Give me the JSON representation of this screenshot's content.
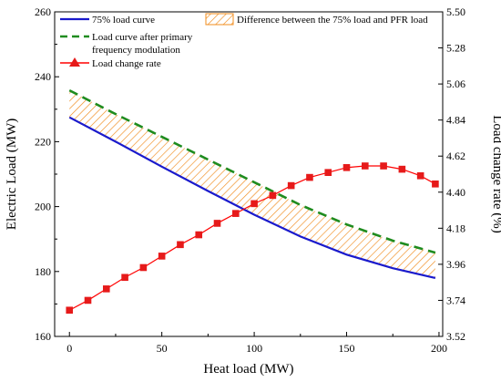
{
  "chart_data": {
    "type": "line",
    "title": "",
    "xlabel": "Heat load (MW)",
    "ylabel_left": "Electric Load (MW)",
    "ylabel_right": "Load change rate (%)",
    "xlim": [
      -8,
      202
    ],
    "ylim_left": [
      160,
      260
    ],
    "ylim_right": [
      3.52,
      5.5
    ],
    "x_ticks": [
      0,
      50,
      100,
      150,
      200
    ],
    "y_ticks_left": [
      160,
      180,
      200,
      220,
      240,
      260
    ],
    "y_ticks_right": [
      "3.52",
      "3.74",
      "3.96",
      "4.18",
      "4.40",
      "4.62",
      "4.84",
      "5.06",
      "5.28",
      "5.50"
    ],
    "grid": false,
    "legend_placement": "top",
    "series": [
      {
        "name": "75% load curve",
        "axis": "left",
        "style": "solid",
        "color": "#1a1acc",
        "x": [
          0,
          25,
          50,
          75,
          100,
          125,
          150,
          175,
          198
        ],
        "values": [
          227.5,
          220.0,
          212.3,
          204.8,
          197.5,
          190.8,
          185.2,
          181.0,
          178.0
        ]
      },
      {
        "name": "Load curve after primary frequency modulation",
        "name_lines": [
          "Load curve after primary",
          "frequency modulation"
        ],
        "axis": "left",
        "style": "dashed",
        "color": "#1f8c1f",
        "x": [
          0,
          25,
          50,
          75,
          100,
          125,
          150,
          175,
          198
        ],
        "values": [
          235.8,
          228.5,
          221.5,
          214.5,
          207.5,
          200.5,
          194.5,
          189.5,
          185.8
        ]
      },
      {
        "name": "Load change rate",
        "axis": "right",
        "style": "solid-marker",
        "color": "#ff0000",
        "marker_color": "#e61a1a",
        "x": [
          0,
          10,
          20,
          30,
          40,
          50,
          60,
          70,
          80,
          90,
          100,
          110,
          120,
          130,
          140,
          150,
          160,
          170,
          180,
          190,
          198
        ],
        "values": [
          3.68,
          3.74,
          3.81,
          3.88,
          3.94,
          4.01,
          4.08,
          4.14,
          4.21,
          4.27,
          4.33,
          4.38,
          4.44,
          4.49,
          4.52,
          4.55,
          4.56,
          4.56,
          4.54,
          4.5,
          4.45
        ]
      }
    ],
    "fill": {
      "name": "Difference between the 75% load and PFR load",
      "between": [
        "75% load curve",
        "Load curve after primary frequency modulation"
      ],
      "hatch_color": "#f08c1e"
    }
  }
}
